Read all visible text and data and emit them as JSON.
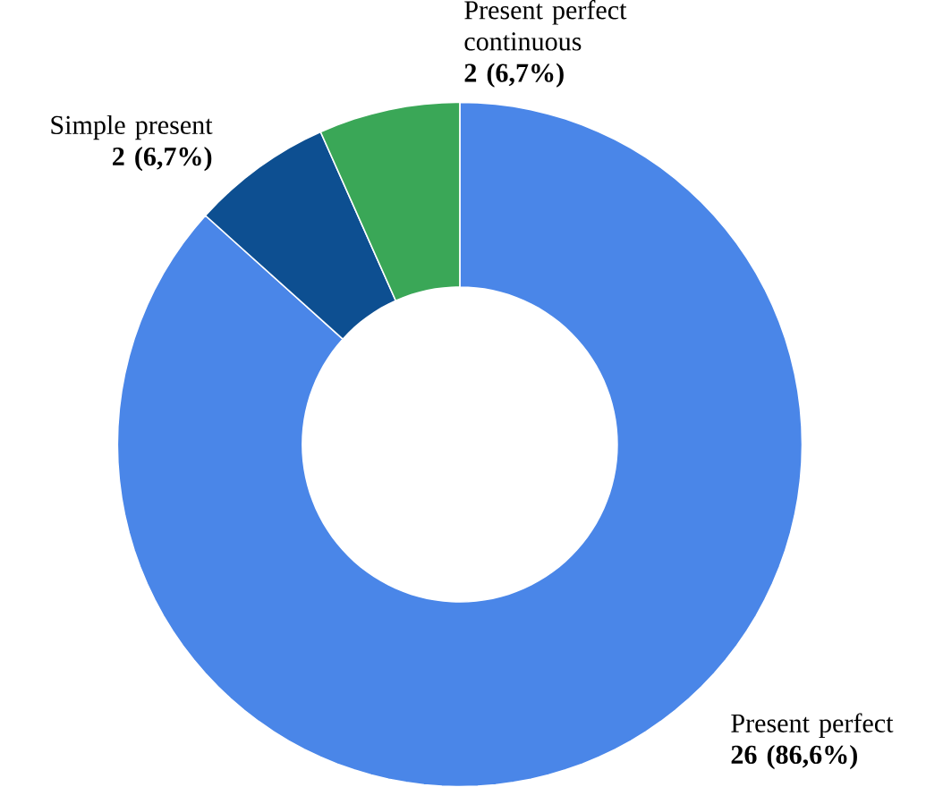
{
  "chart_data": {
    "type": "donut",
    "categories": [
      "Present perfect",
      "Simple present",
      "Present perfect continuous"
    ],
    "values": [
      26,
      2,
      2
    ],
    "value_labels": [
      "26 (86,6%)",
      "2 (6,7%)",
      "2 (6,7%)"
    ],
    "colors": [
      "#4a86e8",
      "#0d4f91",
      "#3aa757"
    ]
  }
}
